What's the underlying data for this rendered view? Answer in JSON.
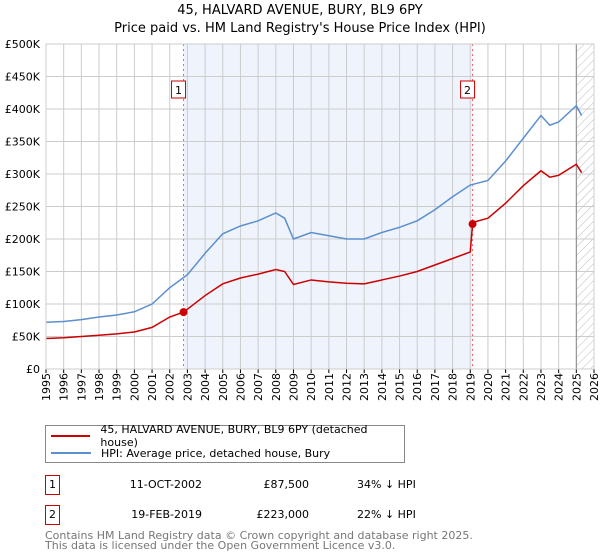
{
  "chart_data": {
    "type": "line",
    "title": "45, HALVARD AVENUE, BURY, BL9 6PY",
    "subtitle": "Price paid vs. HM Land Registry's House Price Index (HPI)",
    "xlim": [
      1995,
      2026
    ],
    "ylim": [
      0,
      500000
    ],
    "x_ticks": [
      "1995",
      "1996",
      "1997",
      "1998",
      "1999",
      "2000",
      "2001",
      "2002",
      "2003",
      "2004",
      "2005",
      "2006",
      "2007",
      "2008",
      "2009",
      "2010",
      "2011",
      "2012",
      "2013",
      "2014",
      "2015",
      "2016",
      "2017",
      "2018",
      "2019",
      "2020",
      "2021",
      "2022",
      "2023",
      "2024",
      "2025",
      "2026"
    ],
    "y_ticks": [
      {
        "v": 0,
        "label": "£0"
      },
      {
        "v": 50000,
        "label": "£50K"
      },
      {
        "v": 100000,
        "label": "£100K"
      },
      {
        "v": 150000,
        "label": "£150K"
      },
      {
        "v": 200000,
        "label": "£200K"
      },
      {
        "v": 250000,
        "label": "£250K"
      },
      {
        "v": 300000,
        "label": "£300K"
      },
      {
        "v": 350000,
        "label": "£350K"
      },
      {
        "v": 400000,
        "label": "£400K"
      },
      {
        "v": 450000,
        "label": "£450K"
      },
      {
        "v": 500000,
        "label": "£500K"
      }
    ],
    "grid": true,
    "shaded_range": [
      2002.78,
      2019.13
    ],
    "forecast_from": 2025.0,
    "series": [
      {
        "name": "45, HALVARD AVENUE, BURY, BL9 6PY (detached house)",
        "color": "#cc0000",
        "x": [
          1995,
          1996,
          1997,
          1998,
          1999,
          2000,
          2001,
          2002,
          2002.78,
          2003,
          2004,
          2005,
          2006,
          2007,
          2008,
          2008.5,
          2009,
          2010,
          2011,
          2012,
          2013,
          2014,
          2015,
          2016,
          2017,
          2018,
          2019,
          2019.13,
          2019.2,
          2020,
          2021,
          2022,
          2023,
          2023.5,
          2024,
          2025,
          2025.3
        ],
        "y": [
          47000,
          48000,
          50000,
          52000,
          54000,
          57000,
          64000,
          80000,
          87500,
          92000,
          113000,
          131000,
          140000,
          146000,
          153000,
          150000,
          130000,
          137000,
          134000,
          132000,
          131000,
          137000,
          143000,
          150000,
          160000,
          170000,
          180000,
          223000,
          226000,
          232000,
          255000,
          282000,
          305000,
          295000,
          298000,
          315000,
          302000
        ]
      },
      {
        "name": "HPI: Average price, detached house, Bury",
        "color": "#5b8fd0",
        "x": [
          1995,
          1996,
          1997,
          1998,
          1999,
          2000,
          2001,
          2002,
          2003,
          2004,
          2005,
          2006,
          2007,
          2008,
          2008.5,
          2009,
          2010,
          2011,
          2012,
          2013,
          2014,
          2015,
          2016,
          2017,
          2018,
          2019,
          2020,
          2021,
          2022,
          2023,
          2023.5,
          2024,
          2025,
          2025.3
        ],
        "y": [
          72000,
          73000,
          76000,
          80000,
          83000,
          88000,
          100000,
          125000,
          145000,
          178000,
          208000,
          220000,
          228000,
          240000,
          232000,
          200000,
          210000,
          205000,
          200000,
          200000,
          210000,
          218000,
          228000,
          245000,
          265000,
          283000,
          290000,
          320000,
          355000,
          390000,
          375000,
          380000,
          405000,
          390000
        ]
      }
    ],
    "markers": [
      {
        "id": "1",
        "x": 2002.78,
        "y": 87500
      },
      {
        "id": "2",
        "x": 2019.13,
        "y": 223000
      }
    ]
  },
  "legend": {
    "red_label": "45, HALVARD AVENUE, BURY, BL9 6PY (detached house)",
    "blue_label": "HPI: Average price, detached house, Bury"
  },
  "transactions": [
    {
      "id": "1",
      "date": "11-OCT-2002",
      "price": "£87,500",
      "hpi": "34% ↓ HPI"
    },
    {
      "id": "2",
      "date": "19-FEB-2019",
      "price": "£223,000",
      "hpi": "22% ↓ HPI"
    }
  ],
  "footer": {
    "line1": "Contains HM Land Registry data © Crown copyright and database right 2025.",
    "line2": "This data is licensed under the Open Government Licence v3.0."
  }
}
